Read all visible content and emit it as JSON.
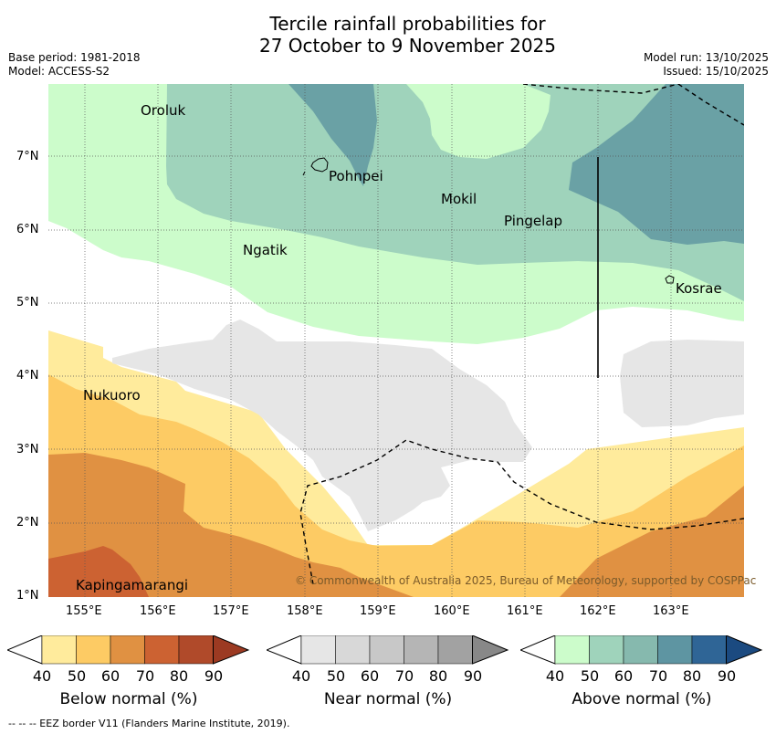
{
  "title": {
    "line1": "Tercile rainfall probabilities for",
    "line2": "27 October to 9 November 2025"
  },
  "meta": {
    "base_period": "Base period: 1981-2018",
    "model": "Model: ACCESS-S2",
    "model_run": "Model run: 13/10/2025",
    "issued": "Issued: 15/10/2025"
  },
  "axes": {
    "x_ticks": [
      "155°E",
      "156°E",
      "157°E",
      "158°E",
      "159°E",
      "160°E",
      "161°E",
      "162°E",
      "163°E"
    ],
    "y_ticks": [
      "7°N",
      "6°N",
      "5°N",
      "4°N",
      "3°N",
      "2°N",
      "1°N"
    ]
  },
  "places": [
    {
      "name": "Oroluk"
    },
    {
      "name": "Pohnpei"
    },
    {
      "name": "Mokil"
    },
    {
      "name": "Pingelap"
    },
    {
      "name": "Ngatik"
    },
    {
      "name": "Kosrae"
    },
    {
      "name": "Nukuoro"
    },
    {
      "name": "Kapingamarangi"
    }
  ],
  "copyright": "© Commonwealth of Australia 2025, Bureau of Meteorology, supported by COSPPac",
  "colorbars": [
    {
      "label": "Below normal (%)",
      "ticks": [
        "40",
        "50",
        "60",
        "70",
        "80",
        "90"
      ],
      "colors": [
        "#ffeb9c",
        "#fdcb64",
        "#e09142",
        "#cc6232",
        "#b04a2a",
        "#9c3a22"
      ]
    },
    {
      "label": "Near normal (%)",
      "ticks": [
        "40",
        "50",
        "60",
        "70",
        "80",
        "90"
      ],
      "colors": [
        "#e6e6e6",
        "#d8d8d8",
        "#c8c8c8",
        "#b5b5b5",
        "#a2a2a2",
        "#888888"
      ]
    },
    {
      "label": "Above normal (%)",
      "ticks": [
        "40",
        "50",
        "60",
        "70",
        "80",
        "90"
      ],
      "colors": [
        "#ccfccb",
        "#9fd3bb",
        "#86b9ae",
        "#5e95a2",
        "#2f6596",
        "#1b4a80"
      ]
    }
  ],
  "footer": "--  --  -- EEZ border V11 (Flanders Marine Institute, 2019)."
}
